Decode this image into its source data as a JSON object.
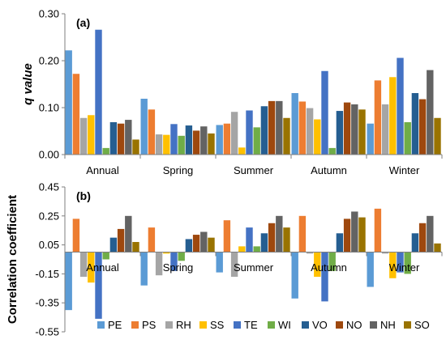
{
  "chart_data": [
    {
      "type": "bar",
      "panel_label": "(a)",
      "ylabel": "q value",
      "xlabel": "",
      "ylim": [
        0,
        0.3
      ],
      "yticks": [
        "0.00",
        "0.10",
        "0.20",
        "0.30"
      ],
      "ytick_values": [
        0,
        0.1,
        0.2,
        0.3
      ],
      "categories": [
        "Annual",
        "Spring",
        "Summer",
        "Autumn",
        "Winter"
      ],
      "grid": false,
      "series": [
        {
          "name": "PE",
          "color": "#5B9BD5",
          "values": [
            0.222,
            0.119,
            0.063,
            0.131,
            0.066
          ]
        },
        {
          "name": "PS",
          "color": "#ED7D31",
          "values": [
            0.172,
            0.096,
            0.066,
            0.113,
            0.158
          ]
        },
        {
          "name": "RH",
          "color": "#A5A5A5",
          "values": [
            0.078,
            0.043,
            0.091,
            0.099,
            0.107
          ]
        },
        {
          "name": "SS",
          "color": "#FFC000",
          "values": [
            0.084,
            0.042,
            0.015,
            0.075,
            0.165
          ]
        },
        {
          "name": "TE",
          "color": "#4472C4",
          "values": [
            0.266,
            0.065,
            0.094,
            0.178,
            0.206
          ]
        },
        {
          "name": "WI",
          "color": "#70AD47",
          "values": [
            0.014,
            0.04,
            0.058,
            0.014,
            0.069
          ]
        },
        {
          "name": "VO",
          "color": "#255E91",
          "values": [
            0.069,
            0.062,
            0.103,
            0.093,
            0.131
          ]
        },
        {
          "name": "NO",
          "color": "#9E480E",
          "values": [
            0.066,
            0.051,
            0.114,
            0.111,
            0.118
          ]
        },
        {
          "name": "NH",
          "color": "#636363",
          "values": [
            0.074,
            0.06,
            0.114,
            0.107,
            0.18
          ]
        },
        {
          "name": "SO",
          "color": "#997300",
          "values": [
            0.032,
            0.045,
            0.078,
            0.096,
            0.078
          ]
        }
      ]
    },
    {
      "type": "bar",
      "panel_label": "(b)",
      "ylabel": "Correlation coefficient",
      "xlabel": "",
      "ylim": [
        -0.55,
        0.45
      ],
      "yticks": [
        "-0.55",
        "-0.35",
        "-0.15",
        "0.05",
        "0.25",
        "0.45"
      ],
      "ytick_values": [
        -0.55,
        -0.35,
        -0.15,
        0.05,
        0.25,
        0.45
      ],
      "categories": [
        "Annual",
        "Spring",
        "Summer",
        "Autumn",
        "Winter"
      ],
      "grid": false,
      "legend": "bottom",
      "series": [
        {
          "name": "PE",
          "color": "#5B9BD5",
          "values": [
            -0.4,
            -0.23,
            -0.14,
            -0.32,
            -0.24
          ]
        },
        {
          "name": "PS",
          "color": "#ED7D31",
          "values": [
            0.23,
            0.17,
            0.22,
            0.25,
            0.3
          ]
        },
        {
          "name": "RH",
          "color": "#A5A5A5",
          "values": [
            -0.17,
            -0.16,
            -0.17,
            -0.01,
            -0.01
          ]
        },
        {
          "name": "SS",
          "color": "#FFC000",
          "values": [
            -0.21,
            -0.01,
            0.04,
            -0.17,
            -0.18
          ]
        },
        {
          "name": "TE",
          "color": "#4472C4",
          "values": [
            -0.46,
            -0.13,
            0.17,
            -0.34,
            -0.14
          ]
        },
        {
          "name": "WI",
          "color": "#70AD47",
          "values": [
            -0.05,
            -0.06,
            0.04,
            -0.13,
            -0.15
          ]
        },
        {
          "name": "VO",
          "color": "#255E91",
          "values": [
            0.1,
            0.09,
            0.13,
            0.13,
            0.13
          ]
        },
        {
          "name": "NO",
          "color": "#9E480E",
          "values": [
            0.16,
            0.12,
            0.2,
            0.23,
            0.2
          ]
        },
        {
          "name": "NH",
          "color": "#636363",
          "values": [
            0.25,
            0.14,
            0.25,
            0.28,
            0.25
          ]
        },
        {
          "name": "SO",
          "color": "#997300",
          "values": [
            0.07,
            0.1,
            0.17,
            0.24,
            0.06
          ]
        }
      ]
    }
  ]
}
